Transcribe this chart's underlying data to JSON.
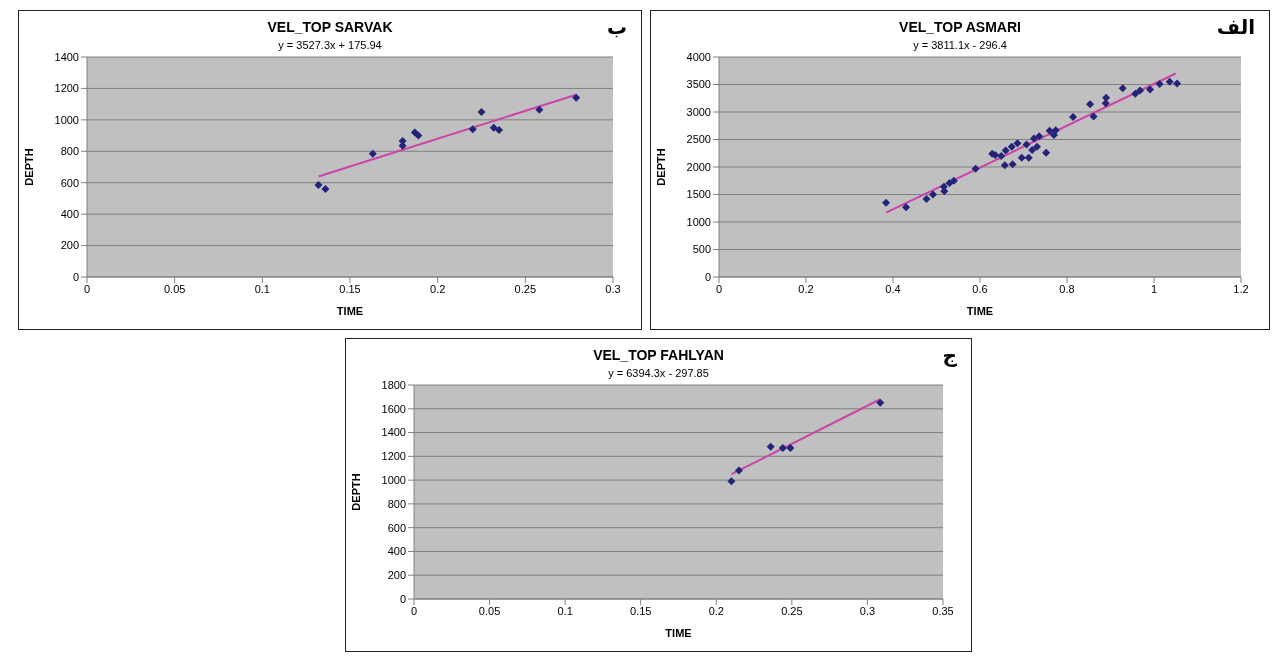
{
  "chart_data": [
    {
      "type": "scatter",
      "title": "VEL_TOP SARVAK",
      "subtitle": "y = 3527.3x + 175.94",
      "xlabel": "TIME",
      "ylabel": "DEPTH",
      "annotations": [
        "ب"
      ],
      "xlim": [
        0,
        0.3
      ],
      "xticks": [
        0,
        0.05,
        0.1,
        0.15,
        0.2,
        0.25,
        0.3
      ],
      "ylim": [
        0,
        1400
      ],
      "yticks": [
        0,
        200,
        400,
        600,
        800,
        1000,
        1200,
        1400
      ],
      "grid": "y",
      "legend": false,
      "series": [
        {
          "marker": "diamond",
          "color": "#23237a",
          "x": [
            0.132,
            0.136,
            0.163,
            0.18,
            0.18,
            0.187,
            0.189,
            0.22,
            0.225,
            0.232,
            0.235,
            0.258,
            0.279
          ],
          "values": [
            585,
            560,
            785,
            865,
            835,
            920,
            900,
            940,
            1050,
            950,
            935,
            1065,
            1140
          ]
        },
        {
          "type": "line",
          "marker": "none",
          "color": "#cc44aa",
          "x": [
            0.132,
            0.279
          ],
          "values": [
            640,
            1160
          ]
        }
      ]
    },
    {
      "type": "scatter",
      "title": "VEL_TOP ASMARI",
      "subtitle": "y = 3811.1x - 296.4",
      "xlabel": "TIME",
      "ylabel": "DEPTH",
      "annotations": [
        "الف"
      ],
      "xlim": [
        0,
        1.2
      ],
      "xticks": [
        0,
        0.2,
        0.4,
        0.6,
        0.8,
        1,
        1.2
      ],
      "ylim": [
        0,
        4000
      ],
      "yticks": [
        0,
        500,
        1000,
        1500,
        2000,
        2500,
        3000,
        3500,
        4000
      ],
      "grid": "y",
      "legend": false,
      "series": [
        {
          "marker": "diamond",
          "color": "#23237a",
          "x": [
            0.384,
            0.43,
            0.477,
            0.492,
            0.517,
            0.518,
            0.53,
            0.54,
            0.59,
            0.628,
            0.635,
            0.649,
            0.659,
            0.657,
            0.675,
            0.673,
            0.686,
            0.696,
            0.707,
            0.712,
            0.72,
            0.724,
            0.731,
            0.736,
            0.752,
            0.76,
            0.77,
            0.774,
            0.814,
            0.853,
            0.861,
            0.889,
            0.89,
            0.928,
            0.957,
            0.968,
            0.991,
            1.013,
            1.036,
            1.053
          ],
          "values": [
            1350,
            1270,
            1420,
            1500,
            1640,
            1560,
            1710,
            1750,
            1970,
            2240,
            2220,
            2200,
            2300,
            2030,
            2050,
            2370,
            2430,
            2170,
            2410,
            2170,
            2310,
            2520,
            2370,
            2560,
            2260,
            2660,
            2580,
            2670,
            2910,
            3140,
            2920,
            3160,
            3260,
            3430,
            3330,
            3390,
            3410,
            3510,
            3550,
            3520
          ]
        },
        {
          "type": "line",
          "marker": "none",
          "color": "#cc44aa",
          "x": [
            0.384,
            1.05
          ],
          "values": [
            1170,
            3700
          ]
        }
      ]
    },
    {
      "type": "scatter",
      "title": "VEL_TOP FAHLYAN",
      "subtitle": "y = 6394.3x - 297.85",
      "xlabel": "TIME",
      "ylabel": "DEPTH",
      "annotations": [
        "ج"
      ],
      "xlim": [
        0,
        0.35
      ],
      "xticks": [
        0,
        0.05,
        0.1,
        0.15,
        0.2,
        0.25,
        0.3,
        0.35
      ],
      "ylim": [
        0,
        1800
      ],
      "yticks": [
        0,
        200,
        400,
        600,
        800,
        1000,
        1200,
        1400,
        1600,
        1800
      ],
      "grid": "y",
      "legend": false,
      "series": [
        {
          "marker": "diamond",
          "color": "#23237a",
          "x": [
            0.21,
            0.215,
            0.236,
            0.244,
            0.249,
            0.3085
          ],
          "values": [
            990,
            1080,
            1280,
            1270,
            1270,
            1650
          ]
        },
        {
          "type": "line",
          "marker": "none",
          "color": "#cc44aa",
          "x": [
            0.21,
            0.3085
          ],
          "values": [
            1050,
            1680
          ]
        }
      ]
    }
  ]
}
